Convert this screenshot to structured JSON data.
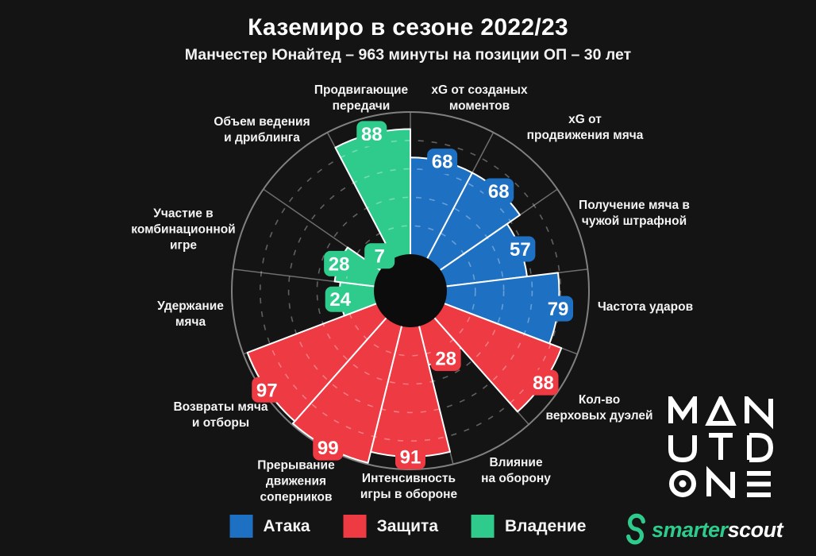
{
  "header": {
    "title": "Каземиро в сезоне 2022/23",
    "subtitle": "Манчестер Юнайтед – 963 минуты на позиции ОП – 30 лет"
  },
  "chart_data": {
    "type": "pie",
    "subtype": "pizza-polar-bar",
    "title": "Каземиро в сезоне 2022/23",
    "subtitle": "Манчестер Юнайтед – 963 минуты на позиции ОП – 30 лет",
    "scale_min": 0,
    "scale_max": 100,
    "direction": "clockwise",
    "start_angle_deg": 0,
    "grid": "dashed-rings",
    "gridlines": [
      20,
      40,
      60,
      80
    ],
    "legend_position": "bottom",
    "colors": {
      "attack": "#1e70c2",
      "defense": "#ee3a43",
      "possession": "#2ecb8c",
      "background": "#141414",
      "hub": "#0c0c0c",
      "ring": "#808080",
      "spoke": "#6e6e6e"
    },
    "categories": [
      {
        "label": "xG от созданых\nмоментов",
        "value": 68,
        "group": "attack",
        "label_x": 604,
        "label_y": 124
      },
      {
        "label": "xG от\nпродвижения мяча",
        "value": 68,
        "group": "attack",
        "label_x": 737,
        "label_y": 161
      },
      {
        "label": "Получение мяча в\nчужой штрафной",
        "value": 57,
        "group": "attack",
        "label_x": 799,
        "label_y": 269
      },
      {
        "label": "Частота ударов",
        "value": 79,
        "group": "attack",
        "label_x": 813,
        "label_y": 387
      },
      {
        "label": "Кол-во\nверховых дуэлей",
        "value": 88,
        "group": "defense",
        "label_x": 755,
        "label_y": 514
      },
      {
        "label": "Влияние\nна оборону",
        "value": 28,
        "group": "defense",
        "label_x": 650,
        "label_y": 593
      },
      {
        "label": "Интенсивность\nигры в обороне",
        "value": 91,
        "group": "defense",
        "label_x": 515,
        "label_y": 613
      },
      {
        "label": "Прерывание\nдвижения\nсоперников",
        "value": 99,
        "group": "defense",
        "label_x": 373,
        "label_y": 606
      },
      {
        "label": "Возвраты мяча\nи отборы",
        "value": 97,
        "group": "defense",
        "label_x": 278,
        "label_y": 523
      },
      {
        "label": "Удержание\nмяча",
        "value": 24,
        "group": "possession",
        "label_x": 240,
        "label_y": 396
      },
      {
        "label": "Участие в\nкомбинационной\nигре",
        "value": 28,
        "group": "possession",
        "label_x": 231,
        "label_y": 289
      },
      {
        "label": "Объем ведения\nи дриблинга",
        "value": 7,
        "group": "possession",
        "label_x": 330,
        "label_y": 164
      },
      {
        "label": "Продвигающие\nпередачи",
        "value": 88,
        "group": "possession",
        "label_x": 455,
        "label_y": 124
      }
    ],
    "legend": [
      {
        "label": "Атака",
        "group": "attack"
      },
      {
        "label": "Защита",
        "group": "defense"
      },
      {
        "label": "Владение",
        "group": "possession"
      }
    ]
  },
  "branding": {
    "club_logo_text": "MAN UTD ONE",
    "provider": {
      "part1": "smarter",
      "part2": "scout",
      "part1_color": "#2ecb8c",
      "part2_color": "#ffffff"
    }
  }
}
